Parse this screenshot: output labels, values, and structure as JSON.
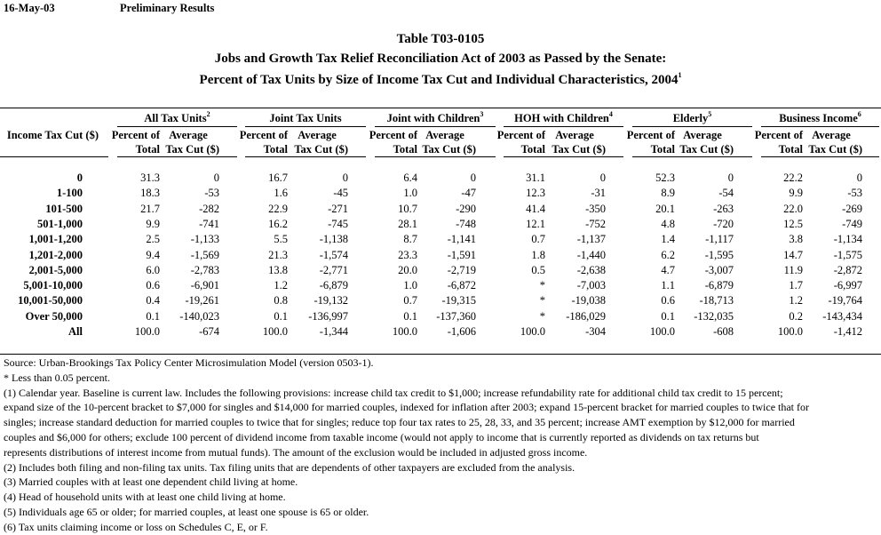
{
  "header": {
    "date": "16-May-03",
    "status": "Preliminary Results"
  },
  "title": {
    "line1": "Table T03-0105",
    "line2": "Jobs and Growth Tax Relief Reconciliation Act of 2003 as Passed by the Senate:",
    "line3": "Percent of Tax Units by Size of Income Tax Cut and Individual Characteristics, 2004",
    "line3_sup": "1"
  },
  "table": {
    "row_header": "Income Tax Cut ($)",
    "groups": [
      {
        "label": "All Tax Units",
        "sup": "2"
      },
      {
        "label": "Joint Tax Units",
        "sup": ""
      },
      {
        "label": "Joint with Children",
        "sup": "3"
      },
      {
        "label": "HOH with Children",
        "sup": "4"
      },
      {
        "label": "Elderly",
        "sup": "5"
      },
      {
        "label": "Business Income",
        "sup": "6"
      }
    ],
    "sub_headers": {
      "pct1": "Percent of",
      "pct2": "Total",
      "avg1": "Average",
      "avg2": "Tax Cut ($)"
    },
    "rows": [
      {
        "label": "0",
        "values": [
          "31.3",
          "0",
          "16.7",
          "0",
          "6.4",
          "0",
          "31.1",
          "0",
          "52.3",
          "0",
          "22.2",
          "0"
        ]
      },
      {
        "label": "1-100",
        "values": [
          "18.3",
          "-53",
          "1.6",
          "-45",
          "1.0",
          "-47",
          "12.3",
          "-31",
          "8.9",
          "-54",
          "9.9",
          "-53"
        ]
      },
      {
        "label": "101-500",
        "values": [
          "21.7",
          "-282",
          "22.9",
          "-271",
          "10.7",
          "-290",
          "41.4",
          "-350",
          "20.1",
          "-263",
          "22.0",
          "-269"
        ]
      },
      {
        "label": "501-1,000",
        "values": [
          "9.9",
          "-741",
          "16.2",
          "-745",
          "28.1",
          "-748",
          "12.1",
          "-752",
          "4.8",
          "-720",
          "12.5",
          "-749"
        ]
      },
      {
        "label": "1,001-1,200",
        "values": [
          "2.5",
          "-1,133",
          "5.5",
          "-1,138",
          "8.7",
          "-1,141",
          "0.7",
          "-1,137",
          "1.4",
          "-1,117",
          "3.8",
          "-1,134"
        ]
      },
      {
        "label": "1,201-2,000",
        "values": [
          "9.4",
          "-1,569",
          "21.3",
          "-1,574",
          "23.3",
          "-1,591",
          "1.8",
          "-1,440",
          "6.2",
          "-1,595",
          "14.7",
          "-1,575"
        ]
      },
      {
        "label": "2,001-5,000",
        "values": [
          "6.0",
          "-2,783",
          "13.8",
          "-2,771",
          "20.0",
          "-2,719",
          "0.5",
          "-2,638",
          "4.7",
          "-3,007",
          "11.9",
          "-2,872"
        ]
      },
      {
        "label": "5,001-10,000",
        "values": [
          "0.6",
          "-6,901",
          "1.2",
          "-6,879",
          "1.0",
          "-6,872",
          "*",
          "-7,003",
          "1.1",
          "-6,879",
          "1.7",
          "-6,997"
        ]
      },
      {
        "label": "10,001-50,000",
        "values": [
          "0.4",
          "-19,261",
          "0.8",
          "-19,132",
          "0.7",
          "-19,315",
          "*",
          "-19,038",
          "0.6",
          "-18,713",
          "1.2",
          "-19,764"
        ]
      },
      {
        "label": "Over 50,000",
        "values": [
          "0.1",
          "-140,023",
          "0.1",
          "-136,997",
          "0.1",
          "-137,360",
          "*",
          "-186,029",
          "0.1",
          "-132,035",
          "0.2",
          "-143,434"
        ]
      },
      {
        "label": "All",
        "values": [
          "100.0",
          "-674",
          "100.0",
          "-1,344",
          "100.0",
          "-1,606",
          "100.0",
          "-304",
          "100.0",
          "-608",
          "100.0",
          "-1,412"
        ]
      }
    ]
  },
  "footnotes": [
    "Source: Urban-Brookings Tax Policy Center Microsimulation Model (version 0503-1).",
    "* Less than 0.05 percent.",
    "(1) Calendar year. Baseline is current law. Includes the following provisions: increase child tax credit to $1,000; increase refundability rate for additional child tax credit to 15 percent;",
    "expand size of the 10-percent bracket to $7,000 for singles and $14,000 for married couples, indexed for inflation after 2003; expand 15-percent bracket for married couples to twice that for",
    "singles; increase standard deduction for married couples to twice that for singles; reduce top four tax rates to 25, 28, 33, and 35 percent; increase AMT exemption by $12,000 for married",
    "couples and $6,000 for others; exclude 100 percent of dividend income from taxable income (would not apply to income that is currently reported as dividends on tax returns but",
    "represents distributions of interest income from mutual funds).  The amount of the exclusion would be included in adjusted gross income.",
    "(2) Includes both filing and non-filing tax units.  Tax filing units that are dependents of other taxpayers are excluded from the analysis.",
    "(3) Married couples with at least one dependent child living at home.",
    "(4) Head of household units with at least one child living at home.",
    "(5) Individuals age 65 or older; for married couples, at least one spouse is 65 or older.",
    "(6) Tax units claiming income or loss on Schedules C, E, or F."
  ]
}
